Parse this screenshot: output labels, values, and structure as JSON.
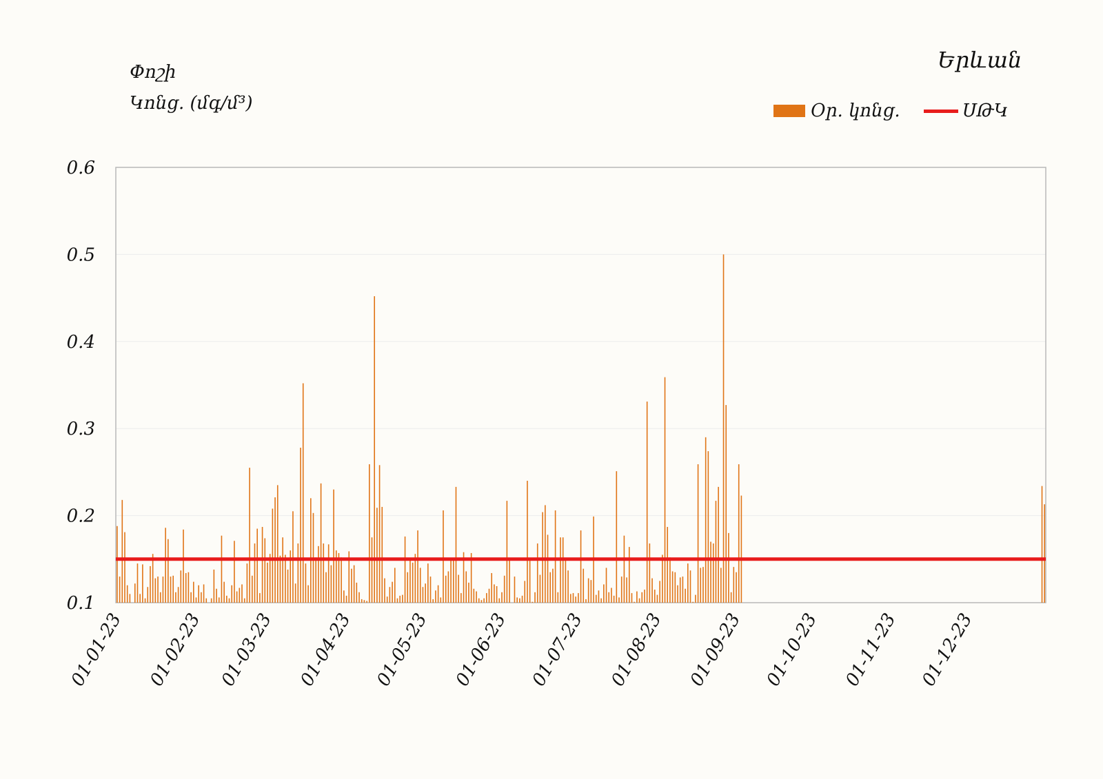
{
  "header": {
    "ylabel_line1": "Փոշի",
    "ylabel_line2": "Կոնց. (մգ/մ³)",
    "location": "Երևան"
  },
  "legend": {
    "bar_label": "Օր. կոնց.",
    "line_label": "ՍԹԿ"
  },
  "colors": {
    "bar": "#e07416",
    "limit": "#e81c1c",
    "axis": "#b8b8b8",
    "grid": "#ececec"
  },
  "chart_data": {
    "type": "bar",
    "x_type": "date",
    "x_start": "2023-01-01",
    "x_end": "2023-12-31",
    "ylim": [
      0.1,
      0.6
    ],
    "y_ticks": [
      "0.1",
      "0.2",
      "0.3",
      "0.4",
      "0.5",
      "0.6"
    ],
    "x_tick_labels": [
      "01-01-23",
      "01-02-23",
      "01-03-23",
      "01-04-23",
      "01-05-23",
      "01-06-23",
      "01-07-23",
      "01-08-23",
      "01-09-23",
      "01-10-23",
      "01-11-23",
      "01-12-23"
    ],
    "grid": "horizontal",
    "legend_position": "top-right",
    "limit_value": 0.15,
    "series": [
      {
        "name": "Օր. կոնց.",
        "values": [
          0.188,
          0.13,
          0.218,
          0.181,
          0.12,
          0.11,
          0.1,
          0.122,
          0.145,
          0.11,
          0.144,
          0.105,
          0.118,
          0.142,
          0.156,
          0.128,
          0.13,
          0.112,
          0.13,
          0.186,
          0.173,
          0.13,
          0.131,
          0.112,
          0.118,
          0.137,
          0.184,
          0.134,
          0.135,
          0.112,
          0.124,
          0.106,
          0.12,
          0.112,
          0.121,
          0.105,
          0.1,
          0.105,
          0.138,
          0.116,
          0.106,
          0.177,
          0.124,
          0.108,
          0.105,
          0.12,
          0.171,
          0.113,
          0.117,
          0.121,
          0.105,
          0.145,
          0.255,
          0.131,
          0.168,
          0.185,
          0.111,
          0.187,
          0.174,
          0.146,
          0.156,
          0.208,
          0.221,
          0.235,
          0.154,
          0.175,
          0.155,
          0.138,
          0.16,
          0.205,
          0.122,
          0.168,
          0.278,
          0.352,
          0.145,
          0.12,
          0.22,
          0.203,
          0.152,
          0.165,
          0.237,
          0.168,
          0.135,
          0.167,
          0.143,
          0.23,
          0.16,
          0.157,
          0.152,
          0.114,
          0.108,
          0.159,
          0.139,
          0.143,
          0.123,
          0.112,
          0.104,
          0.103,
          0.102,
          0.259,
          0.175,
          0.452,
          0.209,
          0.258,
          0.21,
          0.128,
          0.107,
          0.118,
          0.124,
          0.14,
          0.105,
          0.108,
          0.109,
          0.176,
          0.135,
          0.15,
          0.146,
          0.156,
          0.183,
          0.14,
          0.118,
          0.122,
          0.145,
          0.13,
          0.104,
          0.114,
          0.12,
          0.106,
          0.206,
          0.131,
          0.136,
          0.149,
          0.15,
          0.233,
          0.132,
          0.111,
          0.158,
          0.136,
          0.123,
          0.157,
          0.116,
          0.113,
          0.105,
          0.103,
          0.105,
          0.111,
          0.116,
          0.134,
          0.121,
          0.119,
          0.105,
          0.112,
          0.131,
          0.217,
          0.151,
          0.1,
          0.13,
          0.106,
          0.105,
          0.108,
          0.125,
          0.24,
          0.15,
          0.101,
          0.112,
          0.168,
          0.132,
          0.204,
          0.212,
          0.178,
          0.135,
          0.139,
          0.206,
          0.112,
          0.175,
          0.175,
          0.149,
          0.137,
          0.11,
          0.111,
          0.107,
          0.111,
          0.183,
          0.139,
          0.104,
          0.128,
          0.126,
          0.199,
          0.109,
          0.114,
          0.105,
          0.121,
          0.14,
          0.112,
          0.117,
          0.108,
          0.251,
          0.106,
          0.13,
          0.177,
          0.129,
          0.164,
          0.111,
          0.101,
          0.113,
          0.105,
          0.112,
          0.115,
          0.331,
          0.168,
          0.128,
          0.115,
          0.109,
          0.125,
          0.155,
          0.359,
          0.187,
          0.152,
          0.136,
          0.135,
          0.12,
          0.129,
          0.13,
          0.116,
          0.145,
          0.137,
          0.101,
          0.109,
          0.259,
          0.14,
          0.141,
          0.29,
          0.274,
          0.17,
          0.168,
          0.217,
          0.233,
          0.14,
          0.5,
          0.327,
          0.18,
          0.112,
          0.141,
          0.135,
          0.259,
          0.223,
          0.234,
          0.213
        ],
        "note_gap_after_index": 245
      }
    ]
  }
}
